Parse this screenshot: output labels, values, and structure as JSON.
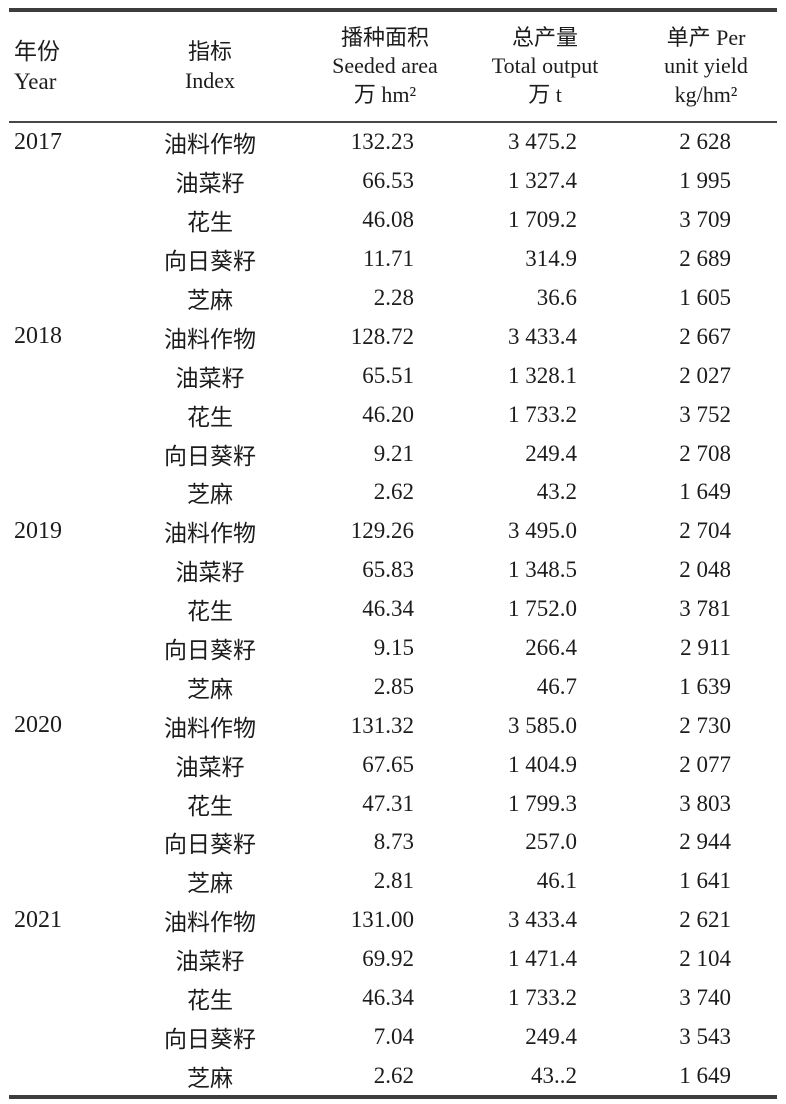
{
  "table": {
    "columns": [
      {
        "id": "year",
        "label": "年份\nYear"
      },
      {
        "id": "index",
        "label": "指标\nIndex"
      },
      {
        "id": "seeded",
        "label": "播种面积\nSeeded area\n万 hm²"
      },
      {
        "id": "output",
        "label": "总产量\nTotal output\n万 t"
      },
      {
        "id": "yield",
        "label": "单产 Per\nunit yield\nkg/hm²"
      }
    ],
    "rows": [
      {
        "year": "2017",
        "index": "油料作物",
        "seeded": "132.23",
        "output": "3 475.2",
        "yield": "2 628"
      },
      {
        "year": "",
        "index": "油菜籽",
        "seeded": "66.53",
        "output": "1 327.4",
        "yield": "1 995"
      },
      {
        "year": "",
        "index": "花生",
        "seeded": "46.08",
        "output": "1 709.2",
        "yield": "3 709"
      },
      {
        "year": "",
        "index": "向日葵籽",
        "seeded": "11.71",
        "output": "314.9",
        "yield": "2 689"
      },
      {
        "year": "",
        "index": "芝麻",
        "seeded": "2.28",
        "output": "36.6",
        "yield": "1 605"
      },
      {
        "year": "2018",
        "index": "油料作物",
        "seeded": "128.72",
        "output": "3 433.4",
        "yield": "2 667"
      },
      {
        "year": "",
        "index": "油菜籽",
        "seeded": "65.51",
        "output": "1 328.1",
        "yield": "2 027"
      },
      {
        "year": "",
        "index": "花生",
        "seeded": "46.20",
        "output": "1 733.2",
        "yield": "3 752"
      },
      {
        "year": "",
        "index": "向日葵籽",
        "seeded": "9.21",
        "output": "249.4",
        "yield": "2 708"
      },
      {
        "year": "",
        "index": "芝麻",
        "seeded": "2.62",
        "output": "43.2",
        "yield": "1 649"
      },
      {
        "year": "2019",
        "index": "油料作物",
        "seeded": "129.26",
        "output": "3 495.0",
        "yield": "2 704"
      },
      {
        "year": "",
        "index": "油菜籽",
        "seeded": "65.83",
        "output": "1 348.5",
        "yield": "2 048"
      },
      {
        "year": "",
        "index": "花生",
        "seeded": "46.34",
        "output": "1 752.0",
        "yield": "3 781"
      },
      {
        "year": "",
        "index": "向日葵籽",
        "seeded": "9.15",
        "output": "266.4",
        "yield": "2 911"
      },
      {
        "year": "",
        "index": "芝麻",
        "seeded": "2.85",
        "output": "46.7",
        "yield": "1 639"
      },
      {
        "year": "2020",
        "index": "油料作物",
        "seeded": "131.32",
        "output": "3 585.0",
        "yield": "2 730"
      },
      {
        "year": "",
        "index": "油菜籽",
        "seeded": "67.65",
        "output": "1 404.9",
        "yield": "2 077"
      },
      {
        "year": "",
        "index": "花生",
        "seeded": "47.31",
        "output": "1 799.3",
        "yield": "3 803"
      },
      {
        "year": "",
        "index": "向日葵籽",
        "seeded": "8.73",
        "output": "257.0",
        "yield": "2 944"
      },
      {
        "year": "",
        "index": "芝麻",
        "seeded": "2.81",
        "output": "46.1",
        "yield": "1 641"
      },
      {
        "year": "2021",
        "index": "油料作物",
        "seeded": "131.00",
        "output": "3 433.4",
        "yield": "2 621"
      },
      {
        "year": "",
        "index": "油菜籽",
        "seeded": "69.92",
        "output": "1 471.4",
        "yield": "2 104"
      },
      {
        "year": "",
        "index": "花生",
        "seeded": "46.34",
        "output": "1 733.2",
        "yield": "3 740"
      },
      {
        "year": "",
        "index": "向日葵籽",
        "seeded": "7.04",
        "output": "249.4",
        "yield": "3 543"
      },
      {
        "year": "",
        "index": "芝麻",
        "seeded": "2.62",
        "output": "43..2",
        "yield": "1 649"
      }
    ],
    "style": {
      "rule_color": "#3d3d3d",
      "text_color": "#1c1c1c",
      "background": "#ffffff"
    }
  }
}
